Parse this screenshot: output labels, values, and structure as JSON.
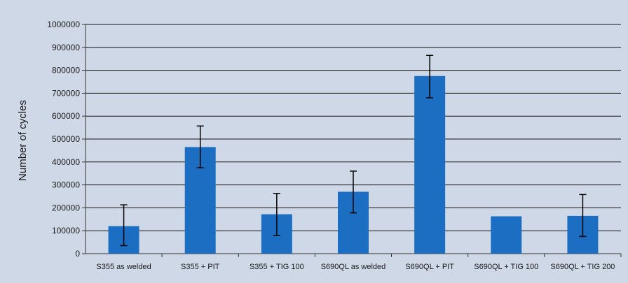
{
  "chart_data": {
    "type": "bar",
    "ylabel": "Number of cycles",
    "xlabel": "",
    "categories": [
      "S355 as welded",
      "S355 + PIT",
      "S355 + TIG 100",
      "S690QL as welded",
      "S690QL + PIT",
      "S690QL + TIG 100",
      "S690QL + TIG 200"
    ],
    "values": [
      120000,
      465000,
      172000,
      270000,
      775000,
      163000,
      165000
    ],
    "error_low": [
      35000,
      375000,
      80000,
      178000,
      680000,
      null,
      75000
    ],
    "error_high": [
      213000,
      557000,
      263000,
      360000,
      865000,
      null,
      258000
    ],
    "ylim": [
      0,
      1000000
    ],
    "yticks": [
      0,
      100000,
      200000,
      300000,
      400000,
      500000,
      600000,
      700000,
      800000,
      900000,
      1000000
    ],
    "grid": true,
    "legend": "none",
    "colors": {
      "bar": "#1b6ec2",
      "plot_background": "#cfd8e6",
      "gridline": "#141414",
      "error_bar": "#000000"
    }
  }
}
